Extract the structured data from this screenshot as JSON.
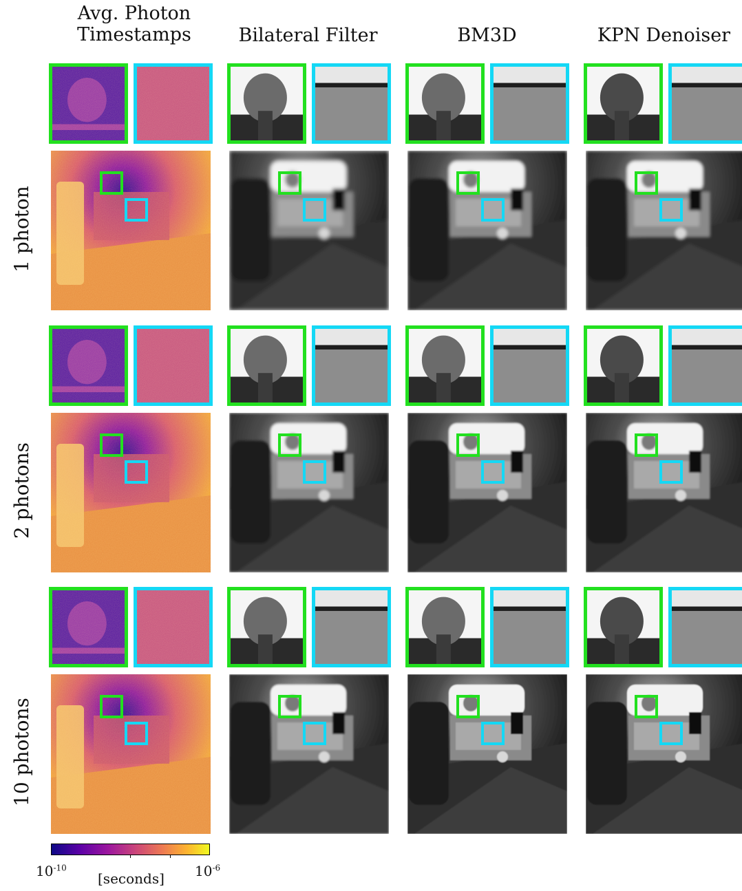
{
  "columns": [
    "Avg. Photon\nTimestamps",
    "Bilateral Filter",
    "BM3D",
    "KPN Denoiser"
  ],
  "rows": [
    "1 photon",
    "2 photons",
    "10 photons"
  ],
  "colorbar": {
    "min_base": "10",
    "min_exp": "-10",
    "max_base": "10",
    "max_exp": "-6",
    "unit": "[seconds]",
    "colormap": "plasma"
  },
  "colors": {
    "green_box": "#22e01f",
    "cyan_box": "#14d8f5"
  }
}
